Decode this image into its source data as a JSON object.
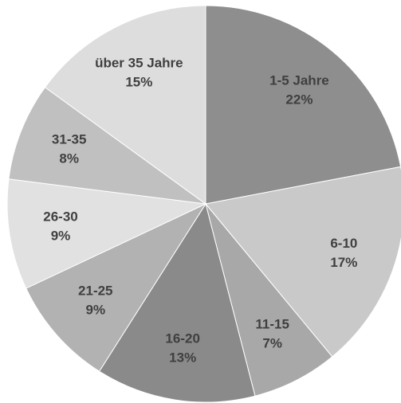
{
  "chart_data": {
    "type": "pie",
    "categories": [
      "1-5 Jahre",
      "6-10",
      "11-15",
      "16-20",
      "21-25",
      "26-30",
      "31-35",
      "über 35 Jahre"
    ],
    "values": [
      22,
      17,
      7,
      13,
      9,
      9,
      8,
      15
    ],
    "value_labels": [
      "22%",
      "17%",
      "7%",
      "13%",
      "9%",
      "9%",
      "8%",
      "15%"
    ],
    "colors": [
      "#8e8e8e",
      "#c9c9c9",
      "#a8a8a8",
      "#8a8a8a",
      "#b2b2b2",
      "#e1e1e1",
      "#c0c0c0",
      "#dddddd"
    ]
  }
}
